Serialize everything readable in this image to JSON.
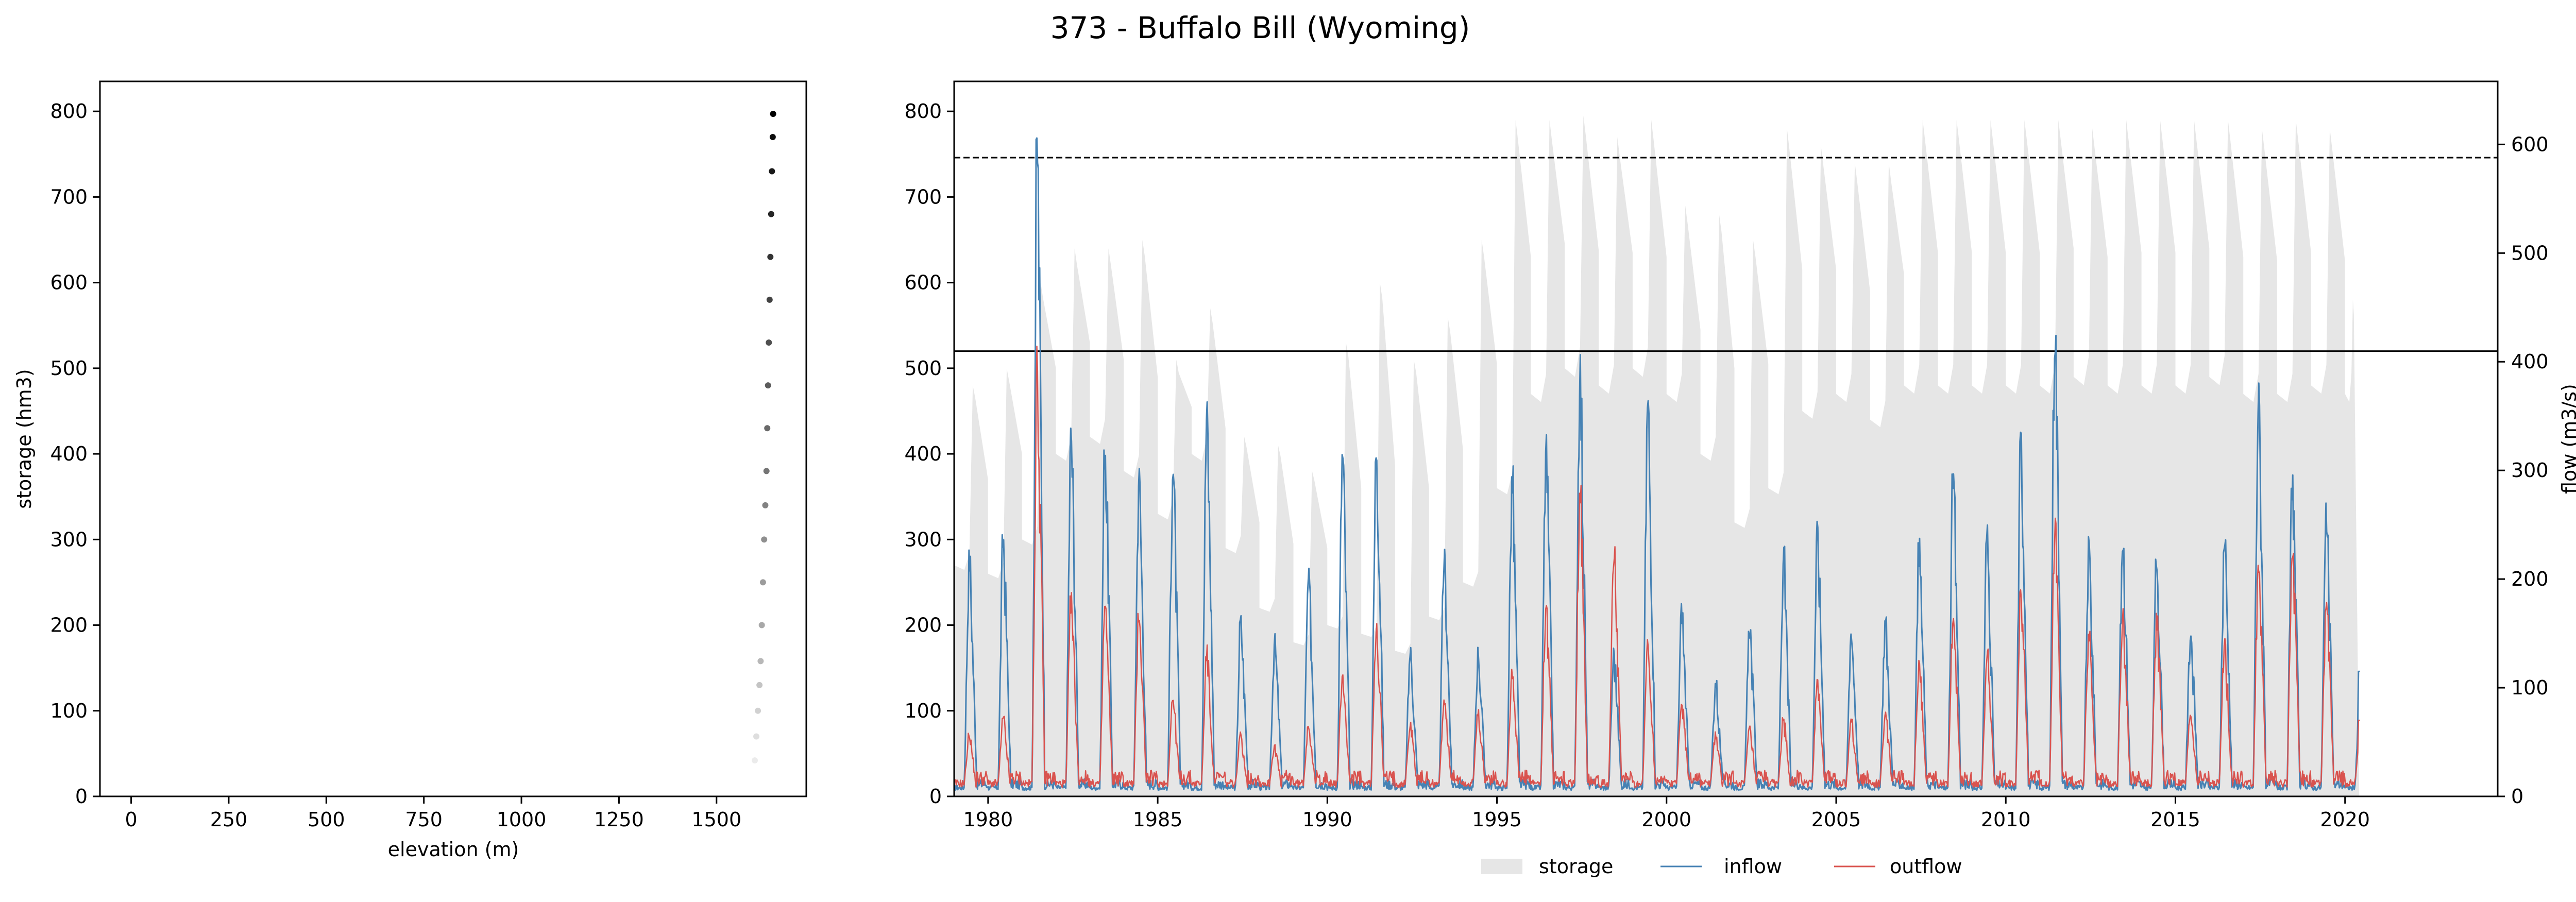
{
  "figure": {
    "title": "373 - Buffalo Bill (Wyoming)"
  },
  "chart_data": [
    {
      "type": "scatter",
      "xlabel": "elevation (m)",
      "ylabel": "storage (hm3)",
      "xlim": [
        -80,
        1730
      ],
      "ylim": [
        0,
        835
      ],
      "xticks": [
        "0",
        "250",
        "500",
        "750",
        "1000",
        "1250",
        "1500"
      ],
      "yticks": [
        "0",
        "100",
        "200",
        "300",
        "400",
        "500",
        "600",
        "700",
        "800"
      ],
      "series": [
        {
          "points": [
            [
              1598,
              42
            ],
            [
              1602,
              70
            ],
            [
              1606,
              100
            ],
            [
              1610,
              130
            ],
            [
              1613,
              158
            ],
            [
              1616,
              200
            ],
            [
              1619,
              250
            ],
            [
              1622,
              300
            ],
            [
              1625,
              340
            ],
            [
              1628,
              380
            ],
            [
              1630,
              430
            ],
            [
              1632,
              480
            ],
            [
              1634,
              530
            ],
            [
              1636,
              580
            ],
            [
              1638,
              630
            ],
            [
              1640,
              680
            ],
            [
              1642,
              730
            ],
            [
              1644,
              770
            ],
            [
              1645,
              797
            ]
          ],
          "color": "#000000"
        }
      ]
    },
    {
      "type": "area",
      "xlabel": "",
      "ylabel_left": "",
      "ylabel_right": "flow (m3/s)",
      "xlim": [
        1979,
        2024.5
      ],
      "ylim_left": [
        0,
        835
      ],
      "ylim_right": [
        0,
        658
      ],
      "xticks": [
        "1980",
        "1985",
        "1990",
        "1995",
        "2000",
        "2005",
        "2010",
        "2015",
        "2020"
      ],
      "yticks_left": [
        "0",
        "100",
        "200",
        "300",
        "400",
        "500",
        "600",
        "700",
        "800"
      ],
      "yticks_right": [
        "0",
        "100",
        "200",
        "300",
        "400",
        "500",
        "600"
      ],
      "reference_lines": [
        {
          "axis": "left",
          "value": 746,
          "style": "dashed",
          "color": "#000000"
        },
        {
          "axis": "left",
          "value": 520,
          "style": "solid",
          "color": "#000000"
        }
      ],
      "legend": {
        "placement": "bottom-center",
        "entries": [
          "storage",
          "inflow",
          "outflow"
        ]
      },
      "colors": {
        "storage": "#e6e6e6",
        "inflow": "#4682b4",
        "outflow": "#d9534f"
      },
      "series": [
        {
          "name": "storage",
          "axis": "left",
          "years": [
            1979,
            1980,
            1981,
            1982,
            1983,
            1984,
            1985,
            1986,
            1987,
            1988,
            1989,
            1990,
            1991,
            1992,
            1993,
            1994,
            1995,
            1996,
            1997,
            1998,
            1999,
            2000,
            2001,
            2002,
            2003,
            2004,
            2005,
            2006,
            2007,
            2008,
            2009,
            2010,
            2011,
            2012,
            2013,
            2014,
            2015,
            2016,
            2017,
            2018,
            2019,
            2020
          ],
          "low": [
            270,
            260,
            300,
            400,
            420,
            380,
            330,
            400,
            290,
            220,
            180,
            200,
            190,
            170,
            210,
            250,
            360,
            470,
            500,
            480,
            500,
            470,
            400,
            320,
            360,
            450,
            470,
            440,
            480,
            480,
            480,
            480,
            480,
            490,
            480,
            480,
            480,
            490,
            470,
            470,
            480,
            470
          ],
          "high": [
            480,
            500,
            600,
            640,
            640,
            650,
            510,
            570,
            420,
            410,
            380,
            530,
            600,
            510,
            560,
            650,
            790,
            790,
            795,
            770,
            790,
            690,
            680,
            650,
            780,
            760,
            740,
            740,
            790,
            790,
            790,
            790,
            790,
            780,
            790,
            790,
            790,
            790,
            780,
            790,
            780,
            580
          ]
        },
        {
          "name": "inflow",
          "axis": "right",
          "years": [
            1979,
            1980,
            1981,
            1982,
            1983,
            1984,
            1985,
            1986,
            1987,
            1988,
            1989,
            1990,
            1991,
            1992,
            1993,
            1994,
            1995,
            1996,
            1997,
            1998,
            1999,
            2000,
            2001,
            2002,
            2003,
            2004,
            2005,
            2006,
            2007,
            2008,
            2009,
            2010,
            2011,
            2012,
            2013,
            2014,
            2015,
            2016,
            2017,
            2018,
            2019,
            2020
          ],
          "peaks": [
            230,
            250,
            628,
            350,
            340,
            310,
            320,
            370,
            170,
            150,
            210,
            330,
            340,
            140,
            230,
            140,
            305,
            335,
            418,
            140,
            380,
            180,
            110,
            165,
            230,
            255,
            160,
            170,
            240,
            305,
            255,
            345,
            455,
            240,
            250,
            230,
            160,
            250,
            385,
            310,
            270,
            115
          ],
          "base": 8
        },
        {
          "name": "outflow",
          "axis": "right",
          "years": [
            1979,
            1980,
            1981,
            1982,
            1983,
            1984,
            1985,
            1986,
            1987,
            1988,
            1989,
            1990,
            1991,
            1992,
            1993,
            1994,
            1995,
            1996,
            1997,
            1998,
            1999,
            2000,
            2001,
            2002,
            2003,
            2004,
            2005,
            2006,
            2007,
            2008,
            2009,
            2010,
            2011,
            2012,
            2013,
            2014,
            2015,
            2016,
            2017,
            2018,
            2019,
            2020
          ],
          "peaks": [
            60,
            75,
            415,
            190,
            185,
            180,
            95,
            140,
            60,
            50,
            70,
            120,
            170,
            70,
            95,
            80,
            120,
            190,
            300,
            240,
            150,
            95,
            60,
            65,
            75,
            115,
            75,
            80,
            130,
            180,
            140,
            200,
            260,
            160,
            180,
            170,
            80,
            150,
            230,
            245,
            190,
            70
          ],
          "base": 12
        }
      ]
    }
  ]
}
